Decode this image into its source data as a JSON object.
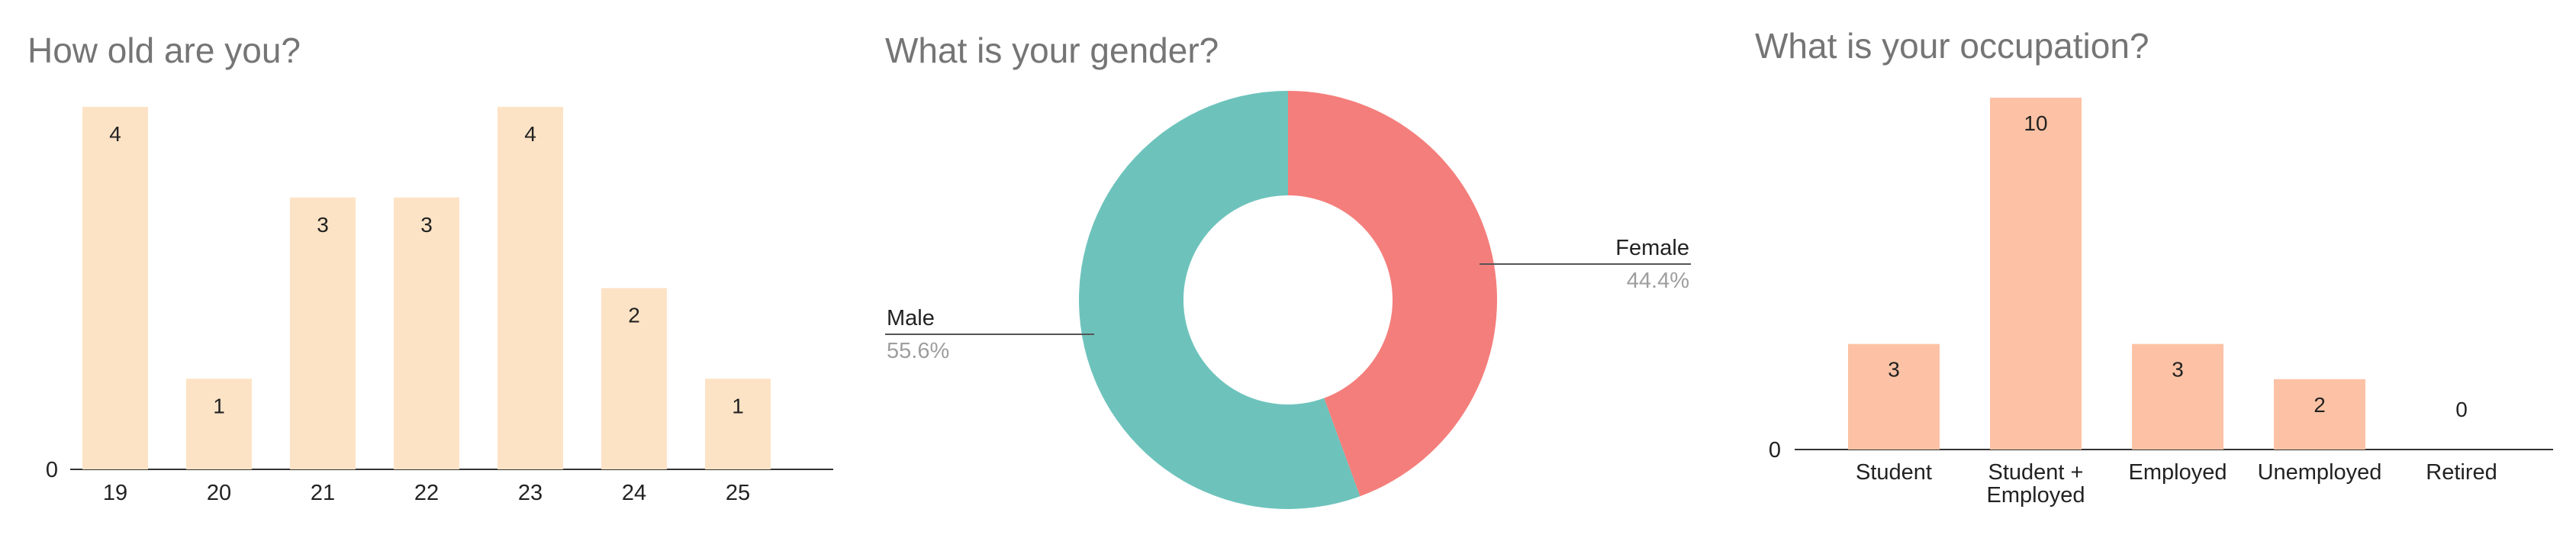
{
  "chart_data": [
    {
      "type": "bar",
      "title": "How old are you?",
      "categories": [
        "19",
        "20",
        "21",
        "22",
        "23",
        "24",
        "25"
      ],
      "values": [
        4,
        1,
        3,
        3,
        4,
        2,
        1
      ],
      "ylim": [
        0,
        4
      ],
      "y_tick_labels": [
        "0"
      ],
      "grid": false,
      "colors": {
        "bar": "#fde3c5",
        "label": "#222222"
      }
    },
    {
      "type": "pie",
      "title": "What is your gender?",
      "donut": true,
      "slices": [
        {
          "label": "Female",
          "value": 44.4,
          "pct_label": "44.4%",
          "color": "#f47e7b"
        },
        {
          "label": "Male",
          "value": 55.6,
          "pct_label": "55.6%",
          "color": "#6dc3bc"
        }
      ]
    },
    {
      "type": "bar",
      "title": "What is your occupation?",
      "categories": [
        {
          "lines": [
            "Student"
          ]
        },
        {
          "lines": [
            "Student +",
            "Employed"
          ]
        },
        {
          "lines": [
            "Employed"
          ]
        },
        {
          "lines": [
            "Unemployed"
          ]
        },
        {
          "lines": [
            "Retired"
          ]
        }
      ],
      "values": [
        3,
        10,
        3,
        2,
        0
      ],
      "ylim": [
        0,
        10
      ],
      "y_tick_labels": [
        "0"
      ],
      "grid": false,
      "colors": {
        "bar": "#fdc2a5",
        "label": "#222222",
        "zero_label": "#f7b39b"
      }
    }
  ]
}
